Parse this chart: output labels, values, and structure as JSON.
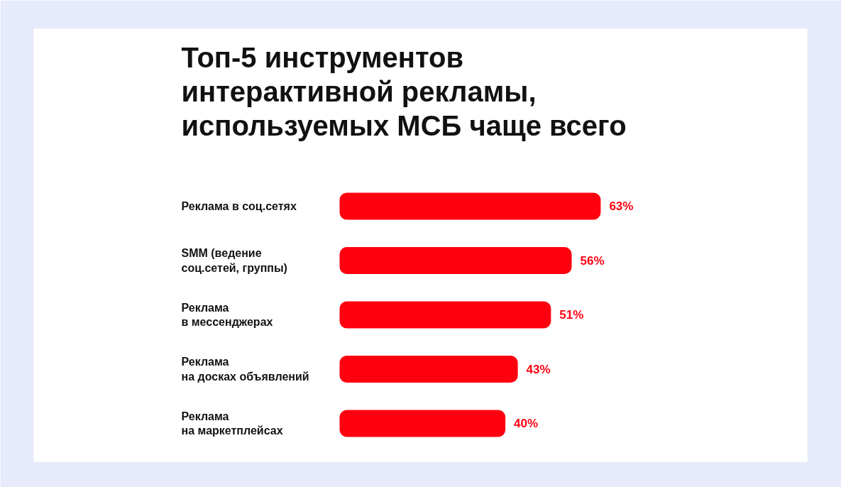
{
  "chart_data": {
    "type": "bar",
    "orientation": "horizontal",
    "title": "Топ-5 инструментов\nинтерактивной рекламы,\nиспользуемых МСБ чаще всего",
    "categories": [
      "Реклама в соц.сетях",
      "SMM (ведение\nсоц.сетей, группы)",
      "Реклама\nв мессенджерах",
      "Реклама\nна досках объявлений",
      "Реклама\nна маркетплейсах"
    ],
    "values": [
      63,
      56,
      51,
      43,
      40
    ],
    "value_labels": [
      "63%",
      "56%",
      "51%",
      "43%",
      "40%"
    ],
    "color": "#ff0010",
    "grid": false
  }
}
